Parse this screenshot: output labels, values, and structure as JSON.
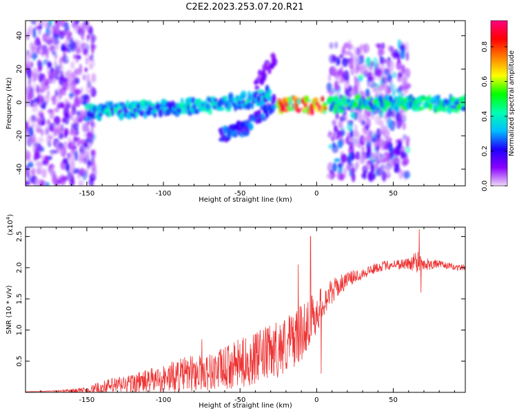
{
  "title": "C2E2.2023.253.07.20.R21",
  "colors": {
    "snr_line": "#ee3333",
    "axis": "#000000"
  },
  "chart_data": [
    {
      "type": "heatmap",
      "xlabel": "Height of straight line (km)",
      "ylabel": "Frequency (Hz)",
      "xlim": [
        -190,
        97
      ],
      "ylim": [
        -50,
        49
      ],
      "x_ticks": [
        -150,
        -100,
        -50,
        0,
        50
      ],
      "y_ticks": [
        -40,
        -20,
        0,
        20,
        40
      ],
      "colorbar": {
        "label": "Normalized spectral amplitude",
        "range": [
          0.0,
          0.95
        ],
        "ticks": [
          0.0,
          0.2,
          0.4,
          0.6,
          0.8
        ],
        "tick_labels": [
          "0.0",
          "0.2",
          "0.4",
          "0.6",
          "0.8"
        ],
        "colors": [
          "#f0d8f8",
          "#8a00ff",
          "#1e00ff",
          "#00bfff",
          "#00ffb0",
          "#00ff00",
          "#ffff00",
          "#ff8000",
          "#ff0000",
          "#ff0080"
        ]
      },
      "features": [
        {
          "name": "noise-left",
          "x_range": [
            -190,
            -145
          ],
          "freq_range": [
            -50,
            49
          ],
          "amplitude": 0.15
        },
        {
          "name": "main-trace",
          "points": [
            [
              -150,
              -6
            ],
            [
              -120,
              -4
            ],
            [
              -90,
              -3
            ],
            [
              -70,
              -2
            ],
            [
              -55,
              0
            ],
            [
              -40,
              2
            ],
            [
              -30,
              5
            ]
          ],
          "amplitude": 0.35
        },
        {
          "name": "descending-branch",
          "points": [
            [
              -63,
              -20
            ],
            [
              -45,
              -14
            ],
            [
              -35,
              -6
            ],
            [
              -27,
              0
            ]
          ],
          "amplitude": 0.25
        },
        {
          "name": "upper-branch",
          "points": [
            [
              -40,
              12
            ],
            [
              -33,
              20
            ],
            [
              -27,
              27
            ]
          ],
          "amplitude": 0.12
        },
        {
          "name": "center-trace",
          "points": [
            [
              -25,
              -2
            ],
            [
              -15,
              -1
            ],
            [
              -5,
              -2
            ],
            [
              5,
              -1
            ]
          ],
          "amplitude": 0.8
        },
        {
          "name": "noise-right",
          "x_range": [
            8,
            60
          ],
          "freq_range": [
            -45,
            35
          ],
          "amplitude": 0.2
        },
        {
          "name": "right-trace",
          "points": [
            [
              8,
              -1
            ],
            [
              60,
              -1
            ],
            [
              97,
              -1
            ]
          ],
          "amplitude": 0.45
        }
      ]
    },
    {
      "type": "line",
      "xlabel": "Height of straight line (km)",
      "ylabel": "SNR (10 * v/v)",
      "y_scale_label": "(x10",
      "y_scale_exp": "4",
      "y_scale_suffix": ")",
      "xlim": [
        -190,
        97
      ],
      "ylim": [
        0,
        2.65
      ],
      "x_ticks": [
        -150,
        -100,
        -50,
        0,
        50
      ],
      "y_ticks": [
        0.5,
        1.0,
        1.5,
        2.0,
        2.5
      ],
      "y_tick_labels": [
        "0.5",
        "1.0",
        "1.5",
        "2.0",
        "2.5"
      ],
      "series": [
        {
          "color": "#ee3333",
          "x": [
            -190,
            -170,
            -150,
            -140,
            -130,
            -120,
            -110,
            -100,
            -90,
            -80,
            -70,
            -60,
            -50,
            -40,
            -30,
            -20,
            -10,
            -5,
            0,
            5,
            10,
            20,
            30,
            40,
            50,
            60,
            65,
            70,
            80,
            90,
            97
          ],
          "y": [
            0.01,
            0.02,
            0.03,
            0.06,
            0.1,
            0.13,
            0.16,
            0.2,
            0.24,
            0.28,
            0.3,
            0.35,
            0.42,
            0.5,
            0.6,
            0.72,
            0.9,
            1.1,
            1.25,
            1.45,
            1.6,
            1.8,
            1.9,
            2.0,
            2.05,
            2.05,
            2.1,
            2.05,
            2.05,
            2.0,
            2.0
          ],
          "noise": [
            0.0,
            0.01,
            0.05,
            0.12,
            0.14,
            0.16,
            0.2,
            0.22,
            0.28,
            0.3,
            0.3,
            0.35,
            0.4,
            0.42,
            0.45,
            0.48,
            0.45,
            0.4,
            0.35,
            0.25,
            0.2,
            0.12,
            0.1,
            0.08,
            0.08,
            0.1,
            0.2,
            0.12,
            0.06,
            0.05,
            0.05
          ],
          "spikes": [
            [
              -75,
              0.85
            ],
            [
              -12,
              2.05
            ],
            [
              -4,
              2.5
            ],
            [
              3,
              0.3
            ],
            [
              67,
              2.62
            ],
            [
              68,
              1.6
            ]
          ]
        }
      ]
    }
  ]
}
